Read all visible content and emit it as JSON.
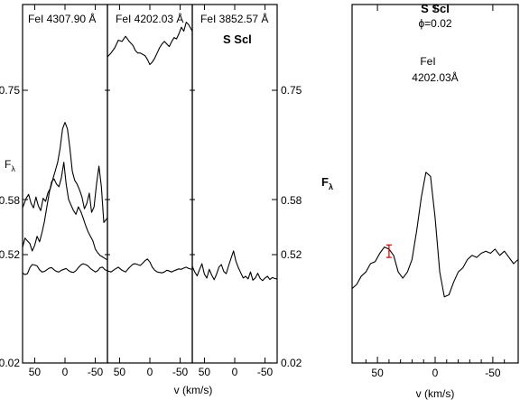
{
  "chart_data": [
    {
      "type": "line",
      "panels": [
        {
          "title": "FeI 4307.90 Å",
          "xlim": [
            70,
            -70
          ],
          "xticks": [
            50,
            0,
            -50
          ],
          "series": [
            {
              "x": [
                70,
                64,
                60,
                56,
                52,
                48,
                44,
                40,
                36,
                32,
                28,
                24,
                20,
                16,
                12,
                8,
                4,
                0,
                -4,
                -8,
                -12,
                -16,
                -20,
                -24,
                -28,
                -32,
                -36,
                -40,
                -44,
                -48,
                -52,
                -56,
                -60,
                -64,
                -70
              ],
              "y": [
                0.571,
                0.582,
                0.588,
                0.576,
                0.571,
                0.584,
                0.573,
                0.568,
                0.582,
                0.578,
                0.591,
                0.598,
                0.612,
                0.625,
                0.638,
                0.66,
                0.69,
                0.7,
                0.69,
                0.66,
                0.624,
                0.61,
                0.604,
                0.595,
                0.584,
                0.57,
                0.576,
                0.59,
                0.566,
                0.572,
                0.604,
                0.632,
                0.6,
                0.555,
                0.56
              ]
            },
            {
              "x": [
                70,
                66,
                62,
                58,
                54,
                50,
                46,
                42,
                38,
                34,
                30,
                26,
                22,
                18,
                14,
                10,
                6,
                2,
                -2,
                -6,
                -10,
                -14,
                -18,
                -22,
                -26,
                -30,
                -34,
                -38,
                -42,
                -46,
                -50,
                -54,
                -58,
                -62,
                -66,
                -70
              ],
              "y": [
                0.528,
                0.538,
                0.535,
                0.532,
                0.524,
                0.53,
                0.54,
                0.534,
                0.544,
                0.556,
                0.572,
                0.59,
                0.608,
                0.612,
                0.604,
                0.6,
                0.614,
                0.638,
                0.604,
                0.58,
                0.574,
                0.568,
                0.564,
                0.572,
                0.567,
                0.56,
                0.552,
                0.545,
                0.54,
                0.535,
                0.526,
                0.522,
                0.516,
                0.51,
                0.502,
                0.496
              ]
            },
            {
              "x": [
                70,
                66,
                62,
                58,
                54,
                50,
                46,
                42,
                38,
                34,
                30,
                26,
                22,
                18,
                14,
                10,
                6,
                2,
                -2,
                -6,
                -10,
                -14,
                -18,
                -22,
                -26,
                -30,
                -34,
                -38,
                -42,
                -46,
                -50,
                -54,
                -58,
                -62,
                -66,
                -70
              ],
              "y": [
                0.435,
                0.428,
                0.432,
                0.46,
                0.474,
                0.472,
                0.468,
                0.45,
                0.44,
                0.442,
                0.45,
                0.458,
                0.46,
                0.45,
                0.442,
                0.44,
                0.448,
                0.452,
                0.456,
                0.446,
                0.44,
                0.438,
                0.446,
                0.46,
                0.472,
                0.478,
                0.474,
                0.468,
                0.456,
                0.448,
                0.44,
                0.446,
                0.46,
                0.462,
                0.45,
                0.445
              ]
            }
          ]
        },
        {
          "title": "FeI 4202.03 Å",
          "xlim": [
            70,
            -70
          ],
          "xticks": [
            50,
            0,
            -50
          ],
          "series": [
            {
              "x": [
                70,
                64,
                58,
                52,
                46,
                40,
                34,
                28,
                24,
                20,
                16,
                12,
                8,
                4,
                0,
                -4,
                -8,
                -12,
                -16,
                -20,
                -24,
                -28,
                -32,
                -36,
                -40,
                -44,
                -48,
                -52,
                -56,
                -60,
                -64,
                -70
              ],
              "y": [
                0.802,
                0.808,
                0.816,
                0.828,
                0.826,
                0.834,
                0.826,
                0.82,
                0.812,
                0.808,
                0.808,
                0.806,
                0.804,
                0.798,
                0.79,
                0.794,
                0.8,
                0.808,
                0.816,
                0.822,
                0.826,
                0.822,
                0.818,
                0.826,
                0.832,
                0.83,
                0.838,
                0.848,
                0.842,
                0.856,
                0.852,
                0.842
              ]
            },
            {
              "x": [
                70,
                64,
                58,
                52,
                46,
                40,
                34,
                28,
                24,
                20,
                16,
                12,
                8,
                4,
                0,
                -4,
                -8,
                -12,
                -16,
                -20,
                -24,
                -28,
                -32,
                -36,
                -40,
                -44,
                -48,
                -52,
                -56,
                -60,
                -64,
                -70
              ],
              "y": [
                0.445,
                0.44,
                0.452,
                0.462,
                0.448,
                0.44,
                0.46,
                0.476,
                0.478,
                0.474,
                0.47,
                0.48,
                0.492,
                0.5,
                0.486,
                0.462,
                0.448,
                0.44,
                0.438,
                0.436,
                0.44,
                0.448,
                0.444,
                0.44,
                0.446,
                0.45,
                0.454,
                0.452,
                0.458,
                0.462,
                0.456,
                0.452
              ]
            }
          ]
        },
        {
          "title": "FeI 3852.57 Å",
          "subtitle": "S Scl",
          "xlim": [
            70,
            -70
          ],
          "xticks": [
            50,
            0,
            -50
          ],
          "series": [
            {
              "x": [
                70,
                66,
                62,
                58,
                54,
                50,
                46,
                42,
                38,
                34,
                30,
                26,
                22,
                18,
                14,
                10,
                6,
                2,
                -2,
                -6,
                -10,
                -14,
                -18,
                -22,
                -26,
                -30,
                -34,
                -38,
                -42,
                -46,
                -50,
                -54,
                -58,
                -62,
                -66,
                -70
              ],
              "y": [
                0.466,
                0.44,
                0.422,
                0.452,
                0.478,
                0.43,
                0.412,
                0.452,
                0.426,
                0.404,
                0.43,
                0.462,
                0.474,
                0.442,
                0.432,
                0.47,
                0.504,
                0.524,
                0.49,
                0.46,
                0.436,
                0.412,
                0.42,
                0.408,
                0.44,
                0.402,
                0.412,
                0.434,
                0.41,
                0.4,
                0.412,
                0.42,
                0.405,
                0.414,
                0.41,
                0.408
              ]
            }
          ]
        }
      ],
      "ylim": [
        0.02,
        0.75
      ],
      "yticks": [
        "0.75",
        "0.58",
        "0.52",
        "0.02"
      ],
      "ylabel": "F",
      "ylabel_sub": "λ",
      "xlabel": "v (km/s)"
    },
    {
      "type": "line",
      "title": "S Scl",
      "subtitle": "ϕ=0.02",
      "annotation_line1": "FeI",
      "annotation_line2": "4202.03Å",
      "xlim": [
        72,
        -72
      ],
      "xticks": [
        50,
        0,
        -50
      ],
      "xlabel": "v (km/s)",
      "ylabel": "F",
      "ylabel_sub": "λ",
      "series": [
        {
          "x": [
            72,
            68,
            64,
            60,
            56,
            52,
            48,
            44,
            40,
            36,
            32,
            28,
            24,
            20,
            16,
            12,
            8,
            4,
            0,
            -4,
            -8,
            -12,
            -16,
            -20,
            -24,
            -28,
            -32,
            -36,
            -40,
            -44,
            -48,
            -52,
            -56,
            -60,
            -64,
            -68,
            -72
          ],
          "y": [
            0.28,
            0.3,
            0.34,
            0.36,
            0.4,
            0.41,
            0.45,
            0.48,
            0.47,
            0.44,
            0.36,
            0.33,
            0.36,
            0.42,
            0.56,
            0.72,
            0.84,
            0.82,
            0.62,
            0.36,
            0.24,
            0.25,
            0.31,
            0.36,
            0.38,
            0.42,
            0.44,
            0.43,
            0.45,
            0.46,
            0.45,
            0.47,
            0.44,
            0.46,
            0.43,
            0.4,
            0.42
          ]
        }
      ],
      "error_bar": {
        "x": 40,
        "y": 0.46,
        "err": 0.03,
        "color": "#d00000"
      }
    }
  ]
}
